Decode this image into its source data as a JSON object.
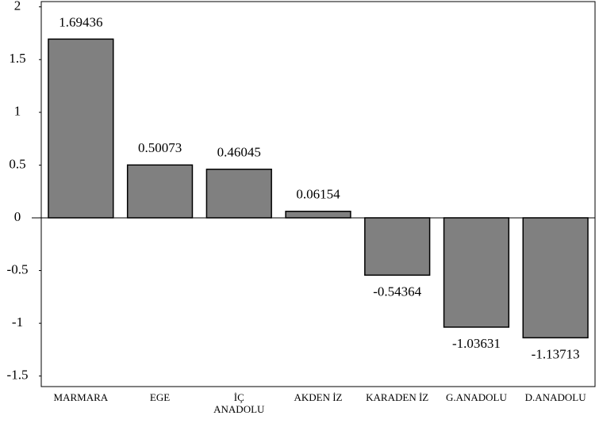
{
  "chart_data": {
    "type": "bar",
    "categories": [
      "MARMARA",
      "EGE",
      "İÇ\nANADOLU",
      "AKDEN İZ",
      "KARADEN İZ",
      "G.ANADOLU",
      "D.ANADOLU"
    ],
    "values": [
      1.69436,
      0.50073,
      0.46045,
      0.06154,
      -0.54364,
      -1.03631,
      -1.13713
    ],
    "color": "#808080",
    "ylim": [
      -1.6,
      2.05
    ],
    "yticks": [
      -1.5,
      -1,
      -0.5,
      0,
      0.5,
      1,
      1.5,
      2
    ],
    "grid": false
  }
}
